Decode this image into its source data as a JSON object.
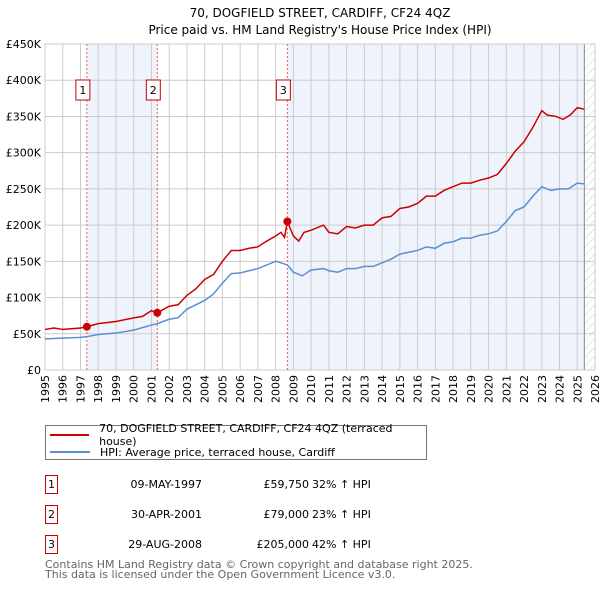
{
  "chart_data": {
    "type": "line",
    "title": "70, DOGFIELD STREET, CARDIFF, CF24 4QZ",
    "subtitle": "Price paid vs. HM Land Registry's House Price Index (HPI)",
    "xlim": [
      1995,
      2026
    ],
    "ylim": [
      0,
      450000
    ],
    "yticks": [
      0,
      50000,
      100000,
      150000,
      200000,
      250000,
      300000,
      350000,
      400000,
      450000
    ],
    "ytick_labels": [
      "£0",
      "£50K",
      "£100K",
      "£150K",
      "£200K",
      "£250K",
      "£300K",
      "£350K",
      "£400K",
      "£450K"
    ],
    "xticks": [
      1995,
      1996,
      1997,
      1998,
      1999,
      2000,
      2001,
      2002,
      2003,
      2004,
      2005,
      2006,
      2007,
      2008,
      2009,
      2010,
      2011,
      2012,
      2013,
      2014,
      2015,
      2016,
      2017,
      2018,
      2019,
      2020,
      2021,
      2022,
      2023,
      2024,
      2025,
      2026
    ],
    "grid": true,
    "data_end": 2025.4,
    "colors": {
      "property": "#cc0000",
      "hpi": "#5b8fd4",
      "shade": "#eef3fc"
    },
    "series": [
      {
        "name": "70, DOGFIELD STREET, CARDIFF, CF24 4QZ (terraced house)",
        "color": "#cc0000",
        "x": [
          1995,
          1995.5,
          1996,
          1996.5,
          1997,
          1997.36,
          1998,
          1999,
          2000,
          2000.5,
          2001,
          2001.33,
          2002,
          2002.5,
          2003,
          2003.5,
          2004,
          2004.5,
          2005,
          2005.5,
          2006,
          2006.5,
          2007,
          2007.5,
          2008,
          2008.3,
          2008.5,
          2008.66,
          2009,
          2009.3,
          2009.6,
          2010,
          2010.7,
          2011,
          2011.5,
          2012,
          2012.5,
          2013,
          2013.5,
          2014,
          2014.5,
          2015,
          2015.5,
          2016,
          2016.5,
          2017,
          2017.5,
          2018,
          2018.5,
          2019,
          2019.5,
          2020,
          2020.5,
          2021,
          2021.5,
          2022,
          2022.5,
          2023,
          2023.3,
          2023.8,
          2024.2,
          2024.6,
          2025,
          2025.4
        ],
        "y": [
          56,
          58,
          56,
          57,
          58,
          59.75,
          64,
          67,
          72,
          74,
          82,
          79,
          88,
          90,
          103,
          112,
          125,
          132,
          150,
          165,
          165,
          168,
          170,
          178,
          185,
          190,
          183,
          205,
          185,
          178,
          190,
          193,
          200,
          190,
          188,
          198,
          196,
          200,
          200,
          210,
          212,
          223,
          225,
          230,
          240,
          240,
          248,
          253,
          258,
          258,
          262,
          265,
          270,
          285,
          302,
          315,
          335,
          358,
          352,
          350,
          346,
          352,
          362,
          360
        ]
      },
      {
        "name": "HPI: Average price, terraced house, Cardiff",
        "color": "#5b8fd4",
        "x": [
          1995,
          1996,
          1997,
          1997.36,
          1998,
          1999,
          2000,
          2001,
          2001.33,
          2002,
          2002.5,
          2003,
          2004,
          2004.5,
          2005,
          2005.5,
          2006,
          2006.5,
          2007,
          2007.5,
          2008,
          2008.3,
          2008.66,
          2009,
          2009.5,
          2010,
          2010.7,
          2011,
          2011.5,
          2012,
          2012.5,
          2013,
          2013.5,
          2014,
          2014.5,
          2015,
          2016,
          2016.5,
          2017,
          2017.5,
          2018,
          2018.5,
          2019,
          2019.5,
          2020,
          2020.5,
          2021,
          2021.5,
          2022,
          2022.5,
          2023,
          2023.5,
          2024,
          2024.5,
          2025,
          2025.4
        ],
        "y": [
          43,
          44,
          45,
          46,
          49,
          51,
          55,
          62,
          64,
          70,
          72,
          84,
          96,
          105,
          120,
          133,
          134,
          137,
          140,
          145,
          150,
          148,
          145,
          135,
          130,
          138,
          140,
          137,
          135,
          140,
          140,
          143,
          143,
          148,
          153,
          160,
          165,
          170,
          168,
          175,
          177,
          182,
          182,
          186,
          188,
          192,
          205,
          220,
          225,
          240,
          253,
          248,
          250,
          250,
          258,
          257
        ]
      }
    ],
    "sales": [
      {
        "id": "1",
        "x": 1997.36,
        "date": "09-MAY-1997",
        "price": "£59,750",
        "value": 59750,
        "hpi": "32% ↑ HPI"
      },
      {
        "id": "2",
        "x": 2001.33,
        "date": "30-APR-2001",
        "price": "£79,000",
        "value": 79000,
        "hpi": "23% ↑ HPI"
      },
      {
        "id": "3",
        "x": 2008.66,
        "date": "29-AUG-2008",
        "price": "£205,000",
        "value": 205000,
        "hpi": "42% ↑ HPI"
      }
    ]
  },
  "footer": {
    "line1": "Contains HM Land Registry data © Crown copyright and database right 2025.",
    "line2": "This data is licensed under the Open Government Licence v3.0."
  }
}
